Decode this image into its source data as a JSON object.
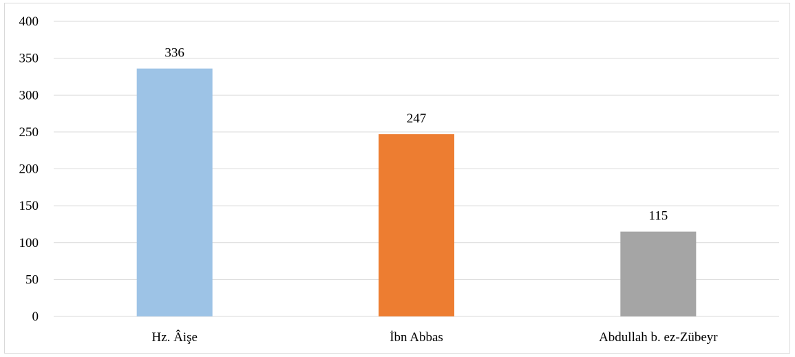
{
  "chart_data": {
    "type": "bar",
    "title": "",
    "xlabel": "",
    "ylabel": "",
    "categories": [
      "Hz. Âişe",
      "İbn Abbas",
      "Abdullah b. ez-Zübeyr"
    ],
    "values": [
      336,
      247,
      115
    ],
    "ylim": [
      0,
      400
    ],
    "yticks": [
      0,
      50,
      100,
      150,
      200,
      250,
      300,
      350,
      400
    ],
    "grid": true,
    "legend": "none",
    "colors": [
      "#9dc3e6",
      "#ed7d31",
      "#a5a5a5"
    ],
    "data_labels": [
      "336",
      "247",
      "115"
    ],
    "ytick_labels": [
      "0",
      "50",
      "100",
      "150",
      "200",
      "250",
      "300",
      "350",
      "400"
    ]
  }
}
